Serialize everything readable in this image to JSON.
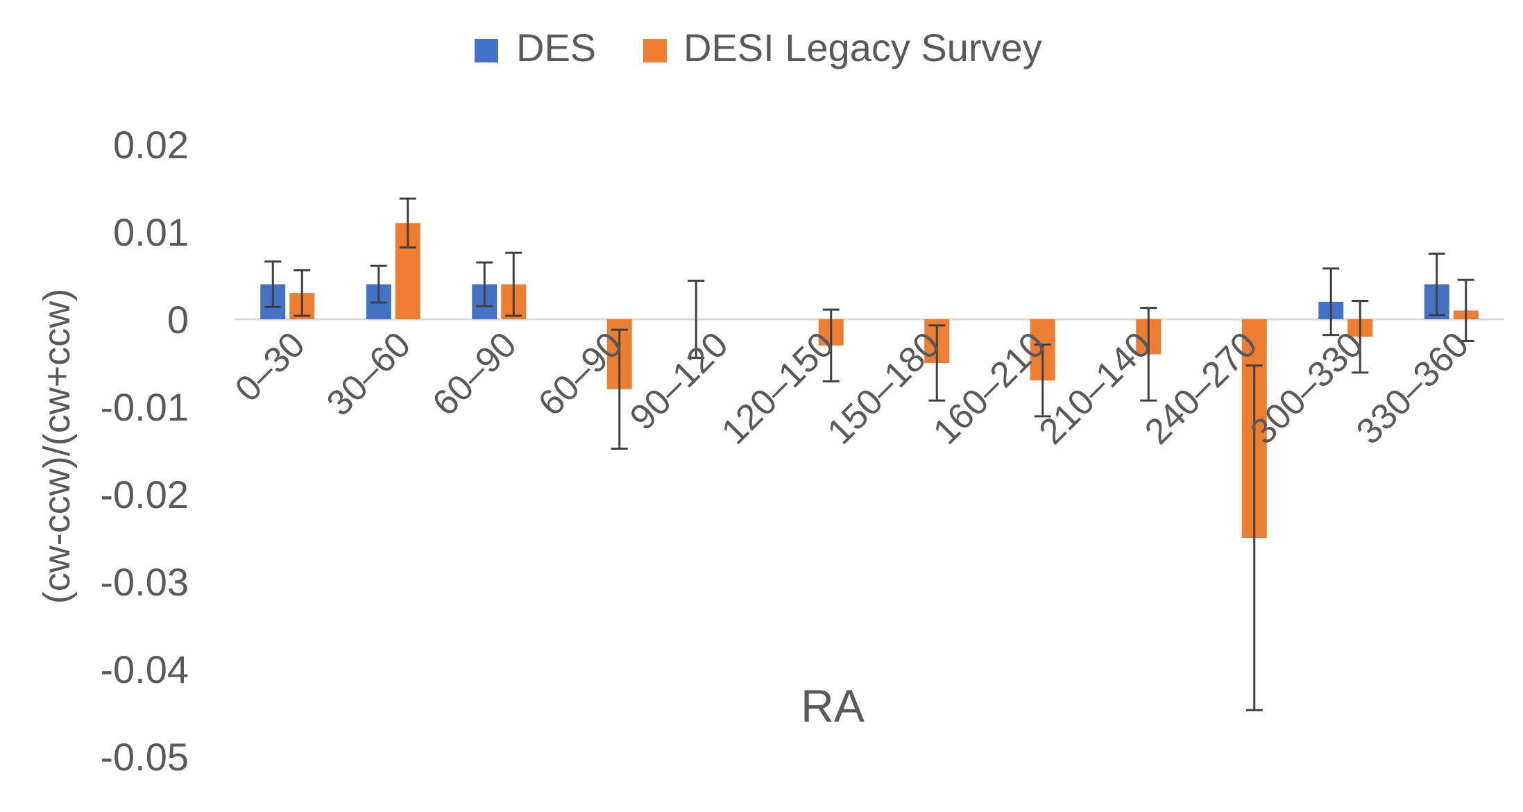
{
  "chart_data": {
    "type": "bar",
    "title": "",
    "xlabel": "RA",
    "ylabel": "(cw-ccw)/(cw+ccw)",
    "ylim": [
      -0.05,
      0.02
    ],
    "yticks": [
      0.02,
      0.01,
      0,
      -0.01,
      -0.02,
      -0.03,
      -0.04,
      -0.05
    ],
    "ytick_labels": [
      "0.02",
      "0.01",
      "0",
      "-0.01",
      "-0.02",
      "-0.03",
      "-0.04",
      "-0.05"
    ],
    "grid": false,
    "legend_position": "top-center",
    "categories": [
      "0–30",
      "30–60",
      "60–90",
      "60–90",
      "90–120",
      "120–150",
      "150–180",
      "160–210",
      "210–140",
      "240–270",
      "300–330",
      "330–360"
    ],
    "series": [
      {
        "name": "DES",
        "color": "#4472C4",
        "values": [
          0.004,
          0.004,
          0.004,
          null,
          null,
          null,
          null,
          null,
          null,
          null,
          0.002,
          0.004
        ],
        "errors": [
          0.0026,
          0.0021,
          0.0025,
          null,
          0.0044,
          null,
          null,
          null,
          null,
          null,
          0.0038,
          0.0035
        ]
      },
      {
        "name": "DESI Legacy Survey",
        "color": "#ED7D31",
        "values": [
          0.003,
          0.011,
          0.004,
          -0.008,
          null,
          -0.003,
          -0.005,
          -0.007,
          -0.004,
          -0.025,
          -0.002,
          0.001
        ],
        "errors": [
          0.0026,
          0.0028,
          0.0036,
          0.0068,
          null,
          0.0041,
          0.0043,
          0.0041,
          0.0053,
          0.0197,
          0.0041,
          0.0035
        ]
      }
    ],
    "error_bar_color": "#404040",
    "axis_line_color": "#D9D9D9"
  }
}
